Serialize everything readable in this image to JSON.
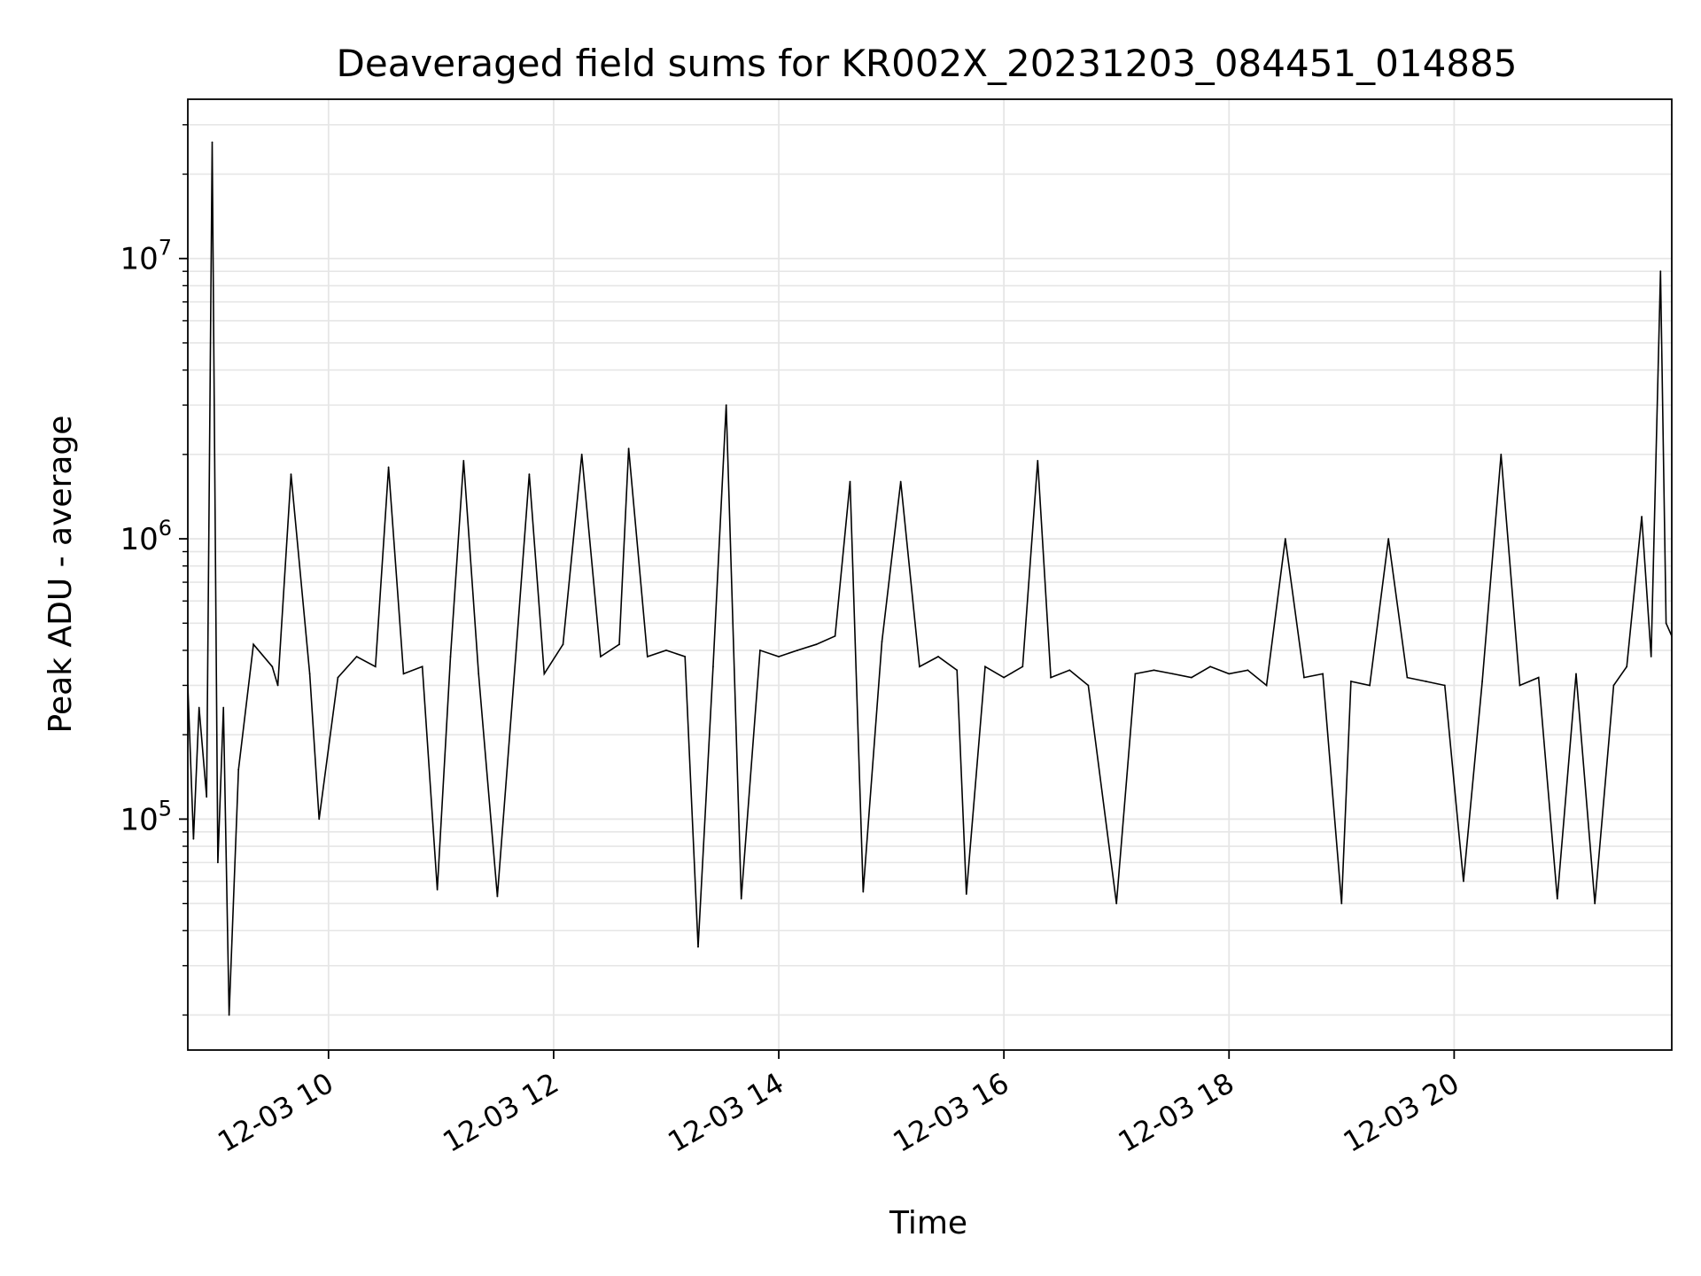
{
  "chart_data": {
    "type": "line",
    "title": "Deaveraged field sums for KR002X_20231203_084451_014885",
    "xlabel": "Time",
    "ylabel": "Peak ADU - average",
    "yscale": "log",
    "xlim": [
      "2023-12-03 08:45",
      "2023-12-03 21:56"
    ],
    "ylim": [
      15000,
      37000000
    ],
    "grid": true,
    "line_color": "#000000",
    "grid_color": "#e6e6e6",
    "x_ticks": [
      {
        "value": "2023-12-03 10:00",
        "label": "12-03 10"
      },
      {
        "value": "2023-12-03 12:00",
        "label": "12-03 12"
      },
      {
        "value": "2023-12-03 14:00",
        "label": "12-03 14"
      },
      {
        "value": "2023-12-03 16:00",
        "label": "12-03 16"
      },
      {
        "value": "2023-12-03 18:00",
        "label": "12-03 18"
      },
      {
        "value": "2023-12-03 20:00",
        "label": "12-03 20"
      }
    ],
    "y_ticks": [
      {
        "value": 100000,
        "base": "10",
        "exp": "5"
      },
      {
        "value": 1000000,
        "base": "10",
        "exp": "6"
      },
      {
        "value": 10000000,
        "base": "10",
        "exp": "7"
      }
    ],
    "x": [
      "2023-12-03 08:45",
      "2023-12-03 08:48",
      "2023-12-03 08:51",
      "2023-12-03 08:55",
      "2023-12-03 08:58",
      "2023-12-03 09:01",
      "2023-12-03 09:04",
      "2023-12-03 09:07",
      "2023-12-03 09:12",
      "2023-12-03 09:20",
      "2023-12-03 09:30",
      "2023-12-03 09:33",
      "2023-12-03 09:40",
      "2023-12-03 09:50",
      "2023-12-03 09:55",
      "2023-12-03 10:05",
      "2023-12-03 10:15",
      "2023-12-03 10:25",
      "2023-12-03 10:32",
      "2023-12-03 10:40",
      "2023-12-03 10:50",
      "2023-12-03 10:58",
      "2023-12-03 11:05",
      "2023-12-03 11:12",
      "2023-12-03 11:20",
      "2023-12-03 11:30",
      "2023-12-03 11:40",
      "2023-12-03 11:47",
      "2023-12-03 11:55",
      "2023-12-03 12:05",
      "2023-12-03 12:15",
      "2023-12-03 12:25",
      "2023-12-03 12:35",
      "2023-12-03 12:40",
      "2023-12-03 12:50",
      "2023-12-03 13:00",
      "2023-12-03 13:10",
      "2023-12-03 13:17",
      "2023-12-03 13:25",
      "2023-12-03 13:32",
      "2023-12-03 13:40",
      "2023-12-03 13:50",
      "2023-12-03 14:00",
      "2023-12-03 14:10",
      "2023-12-03 14:20",
      "2023-12-03 14:30",
      "2023-12-03 14:38",
      "2023-12-03 14:45",
      "2023-12-03 14:55",
      "2023-12-03 15:05",
      "2023-12-03 15:15",
      "2023-12-03 15:25",
      "2023-12-03 15:35",
      "2023-12-03 15:40",
      "2023-12-03 15:50",
      "2023-12-03 16:00",
      "2023-12-03 16:10",
      "2023-12-03 16:18",
      "2023-12-03 16:25",
      "2023-12-03 16:35",
      "2023-12-03 16:45",
      "2023-12-03 17:00",
      "2023-12-03 17:10",
      "2023-12-03 17:20",
      "2023-12-03 17:30",
      "2023-12-03 17:40",
      "2023-12-03 17:50",
      "2023-12-03 18:00",
      "2023-12-03 18:10",
      "2023-12-03 18:20",
      "2023-12-03 18:30",
      "2023-12-03 18:40",
      "2023-12-03 18:50",
      "2023-12-03 19:00",
      "2023-12-03 19:05",
      "2023-12-03 19:15",
      "2023-12-03 19:25",
      "2023-12-03 19:35",
      "2023-12-03 19:45",
      "2023-12-03 19:55",
      "2023-12-03 20:05",
      "2023-12-03 20:15",
      "2023-12-03 20:25",
      "2023-12-03 20:35",
      "2023-12-03 20:45",
      "2023-12-03 20:55",
      "2023-12-03 21:05",
      "2023-12-03 21:15",
      "2023-12-03 21:25",
      "2023-12-03 21:32",
      "2023-12-03 21:40",
      "2023-12-03 21:45",
      "2023-12-03 21:50",
      "2023-12-03 21:53",
      "2023-12-03 21:56"
    ],
    "y": [
      300000,
      85000,
      250000,
      120000,
      26000000,
      70000,
      250000,
      20000,
      150000,
      420000,
      350000,
      300000,
      1700000,
      330000,
      100000,
      320000,
      380000,
      350000,
      1800000,
      330000,
      350000,
      56000,
      380000,
      1900000,
      330000,
      53000,
      400000,
      1700000,
      330000,
      420000,
      2000000,
      380000,
      420000,
      2100000,
      380000,
      400000,
      380000,
      35000,
      350000,
      3000000,
      52000,
      400000,
      380000,
      400000,
      420000,
      450000,
      1600000,
      55000,
      430000,
      1600000,
      350000,
      380000,
      340000,
      54000,
      350000,
      320000,
      350000,
      1900000,
      320000,
      340000,
      300000,
      50000,
      330000,
      340000,
      330000,
      320000,
      350000,
      330000,
      340000,
      300000,
      1000000,
      320000,
      330000,
      50000,
      310000,
      300000,
      1000000,
      320000,
      310000,
      300000,
      60000,
      310000,
      2000000,
      300000,
      320000,
      52000,
      330000,
      50000,
      300000,
      350000,
      1200000,
      380000,
      9000000,
      500000,
      450000
    ]
  }
}
